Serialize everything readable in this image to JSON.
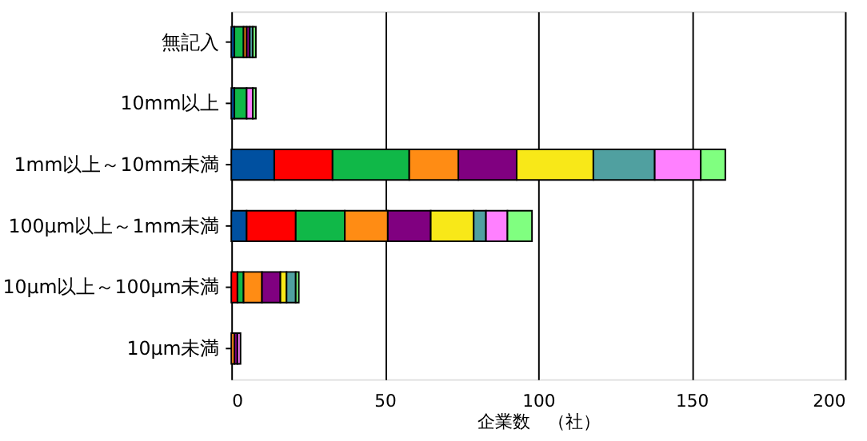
{
  "chart_data": {
    "type": "bar",
    "orientation": "horizontal",
    "stacked": true,
    "xlabel": "企業数　（社）",
    "categories": [
      "無記入",
      "10mm以上",
      "1mm以上～10mm未満",
      "100μm以上～1mm未満",
      "10μm以上～100μm未満",
      "10μm未満"
    ],
    "series": [
      {
        "color": "#0050a0",
        "values": [
          1,
          1,
          14,
          5,
          0,
          0
        ]
      },
      {
        "color": "#ff0000",
        "values": [
          0,
          0,
          19,
          16,
          2,
          0
        ]
      },
      {
        "color": "#10b848",
        "values": [
          3,
          4,
          25,
          16,
          2,
          0
        ]
      },
      {
        "color": "#ff8c14",
        "values": [
          1,
          0,
          16,
          14,
          6,
          1
        ]
      },
      {
        "color": "#800080",
        "values": [
          1,
          0,
          19,
          14,
          6,
          1
        ]
      },
      {
        "color": "#f8e818",
        "values": [
          0,
          0,
          25,
          14,
          2,
          0
        ]
      },
      {
        "color": "#50a0a0",
        "values": [
          1,
          0,
          20,
          4,
          3,
          0
        ]
      },
      {
        "color": "#ff80ff",
        "values": [
          0,
          2,
          15,
          7,
          0,
          1
        ]
      },
      {
        "color": "#80ff80",
        "values": [
          1,
          1,
          8,
          8,
          1,
          0
        ]
      }
    ],
    "xlim": [
      0,
      200
    ],
    "xticks": [
      0,
      50,
      100,
      150,
      200
    ],
    "grid": "x",
    "legend": false
  }
}
